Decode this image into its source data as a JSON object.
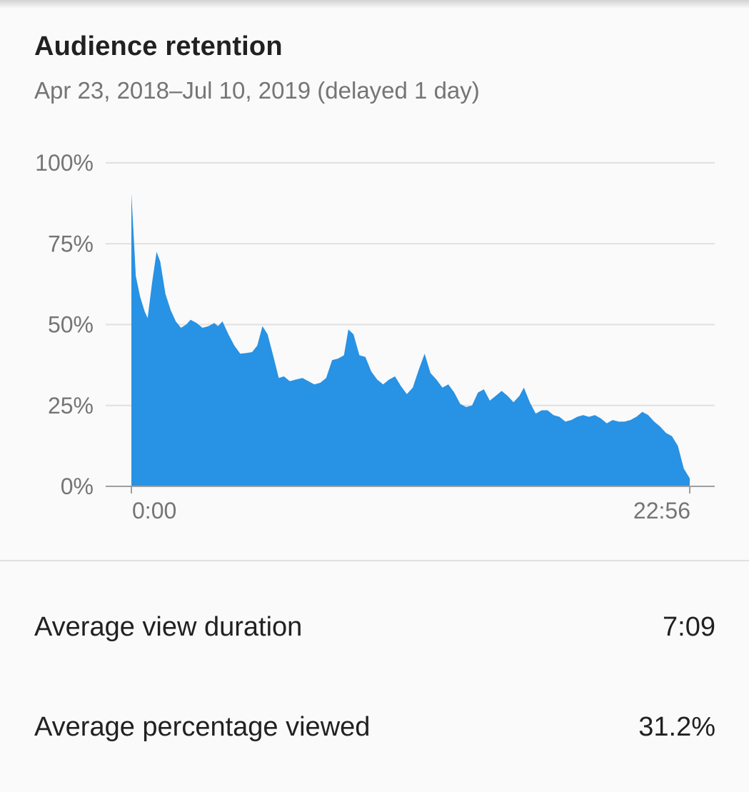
{
  "card": {
    "title": "Audience retention",
    "subtitle": "Apr 23, 2018–Jul 10, 2019 (delayed 1 day)"
  },
  "colors": {
    "series": "#2892e4",
    "grid": "#e0e0e0",
    "axis": "#9e9e9e",
    "muted_text": "#757575"
  },
  "chart_data": {
    "type": "area",
    "title": "",
    "xlabel": "",
    "ylabel": "",
    "x_range": [
      "0:00",
      "22:56"
    ],
    "x_tick_labels": [
      "0:00",
      "22:56"
    ],
    "ylim": [
      0,
      100
    ],
    "y_tick_labels": [
      "0%",
      "25%",
      "50%",
      "75%",
      "100%"
    ],
    "y_ticks": [
      0,
      25,
      50,
      75,
      100
    ],
    "grid": true,
    "series": [
      {
        "name": "",
        "points": [
          [
            0.0,
            90.5
          ],
          [
            0.3,
            78.0
          ],
          [
            0.6,
            65.0
          ],
          [
            1.2,
            58.5
          ],
          [
            1.8,
            54.0
          ],
          [
            2.2,
            52.0
          ],
          [
            2.8,
            63.0
          ],
          [
            3.4,
            72.5
          ],
          [
            3.9,
            69.5
          ],
          [
            4.6,
            59.5
          ],
          [
            5.3,
            54.5
          ],
          [
            6.0,
            51.0
          ],
          [
            6.7,
            49.0
          ],
          [
            7.4,
            50.0
          ],
          [
            8.0,
            51.5
          ],
          [
            8.8,
            50.5
          ],
          [
            9.6,
            49.0
          ],
          [
            10.4,
            49.5
          ],
          [
            11.2,
            50.5
          ],
          [
            11.7,
            49.5
          ],
          [
            12.3,
            51.0
          ],
          [
            13.1,
            47.0
          ],
          [
            13.9,
            43.5
          ],
          [
            14.7,
            41.0
          ],
          [
            15.5,
            41.2
          ],
          [
            16.3,
            41.5
          ],
          [
            17.0,
            43.5
          ],
          [
            17.7,
            49.5
          ],
          [
            18.4,
            47.0
          ],
          [
            19.2,
            40.0
          ],
          [
            19.9,
            33.5
          ],
          [
            20.6,
            34.0
          ],
          [
            21.4,
            32.5
          ],
          [
            22.2,
            33.0
          ],
          [
            23.1,
            33.5
          ],
          [
            23.9,
            32.5
          ],
          [
            24.7,
            31.5
          ],
          [
            25.5,
            32.0
          ],
          [
            26.3,
            33.5
          ],
          [
            27.1,
            39.0
          ],
          [
            27.9,
            39.5
          ],
          [
            28.7,
            40.5
          ],
          [
            29.3,
            48.5
          ],
          [
            30.0,
            47.0
          ],
          [
            30.8,
            40.5
          ],
          [
            31.6,
            40.0
          ],
          [
            32.4,
            35.5
          ],
          [
            33.2,
            33.0
          ],
          [
            34.0,
            31.5
          ],
          [
            34.8,
            33.0
          ],
          [
            35.6,
            34.0
          ],
          [
            36.4,
            31.0
          ],
          [
            37.2,
            28.5
          ],
          [
            38.0,
            30.5
          ],
          [
            38.8,
            36.0
          ],
          [
            39.6,
            41.0
          ],
          [
            40.4,
            35.0
          ],
          [
            41.2,
            33.0
          ],
          [
            42.0,
            30.5
          ],
          [
            42.8,
            31.5
          ],
          [
            43.6,
            29.0
          ],
          [
            44.4,
            25.5
          ],
          [
            45.2,
            24.5
          ],
          [
            46.0,
            25.0
          ],
          [
            46.8,
            29.0
          ],
          [
            47.6,
            30.0
          ],
          [
            48.4,
            26.5
          ],
          [
            49.2,
            28.0
          ],
          [
            50.0,
            29.5
          ],
          [
            50.8,
            28.0
          ],
          [
            51.6,
            26.0
          ],
          [
            52.4,
            28.0
          ],
          [
            53.0,
            30.5
          ],
          [
            53.8,
            26.0
          ],
          [
            54.6,
            22.5
          ],
          [
            55.4,
            23.5
          ],
          [
            56.2,
            23.5
          ],
          [
            57.0,
            22.0
          ],
          [
            57.8,
            21.5
          ],
          [
            58.6,
            20.0
          ],
          [
            59.4,
            20.5
          ],
          [
            60.2,
            21.5
          ],
          [
            61.0,
            22.0
          ],
          [
            61.8,
            21.5
          ],
          [
            62.6,
            22.0
          ],
          [
            63.4,
            21.0
          ],
          [
            64.2,
            19.5
          ],
          [
            65.0,
            20.5
          ],
          [
            65.8,
            20.0
          ],
          [
            66.6,
            20.0
          ],
          [
            67.4,
            20.5
          ],
          [
            68.2,
            21.5
          ],
          [
            69.0,
            23.0
          ],
          [
            69.8,
            22.0
          ],
          [
            70.6,
            20.0
          ],
          [
            71.4,
            18.5
          ],
          [
            72.2,
            16.5
          ],
          [
            73.0,
            15.5
          ],
          [
            73.8,
            12.5
          ],
          [
            74.6,
            5.5
          ],
          [
            75.4,
            2.5
          ]
        ]
      }
    ],
    "x_max": 75.4
  },
  "metrics": [
    {
      "label": "Average view duration",
      "value": "7:09"
    },
    {
      "label": "Average percentage viewed",
      "value": "31.2%"
    }
  ]
}
